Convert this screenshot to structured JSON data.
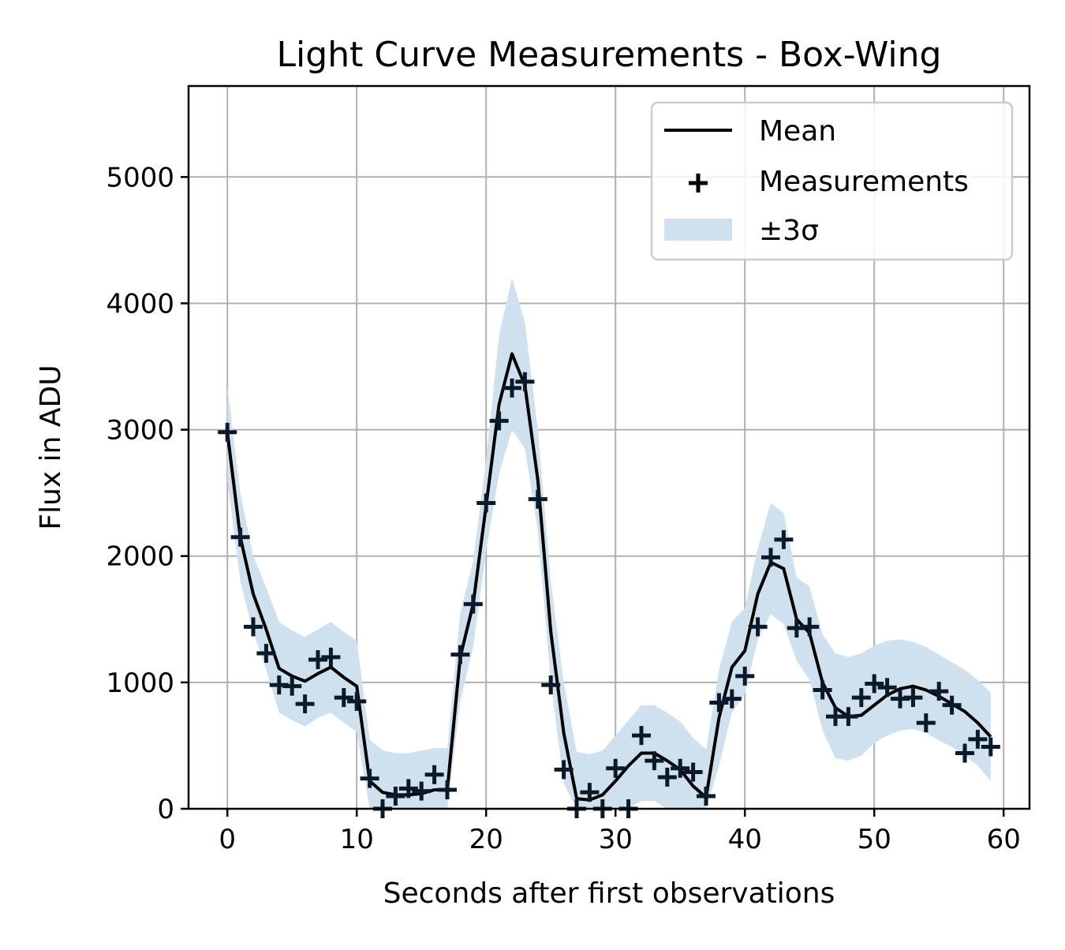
{
  "chart_data": {
    "type": "line",
    "title": "Light Curve Measurements - Box-Wing",
    "xlabel": "Seconds after first observations",
    "ylabel": "Flux in ADU",
    "xlim": [
      -3,
      62
    ],
    "ylim": [
      0,
      5720
    ],
    "x_ticks": [
      0,
      10,
      20,
      30,
      40,
      50,
      60
    ],
    "y_ticks": [
      0,
      1000,
      2000,
      3000,
      4000,
      5000
    ],
    "grid": true,
    "legend_position": "top-right",
    "legend": [
      {
        "key": "mean",
        "label": "Mean"
      },
      {
        "key": "measurements",
        "label": "Measurements"
      },
      {
        "key": "band",
        "label": "±3σ"
      }
    ],
    "colors": {
      "mean": "#000000",
      "measurement": "#0b1a2a",
      "band": "#cfe1ee",
      "grid": "#b0b0b0",
      "axes": "#000000"
    },
    "x": [
      0,
      1,
      2,
      3,
      4,
      5,
      6,
      7,
      8,
      9,
      10,
      11,
      12,
      13,
      14,
      15,
      16,
      17,
      18,
      19,
      20,
      21,
      22,
      23,
      24,
      25,
      26,
      27,
      28,
      29,
      30,
      31,
      32,
      33,
      34,
      35,
      36,
      37,
      38,
      39,
      40,
      41,
      42,
      43,
      44,
      45,
      46,
      47,
      48,
      49,
      50,
      51,
      52,
      53,
      54,
      55,
      56,
      57,
      58,
      59
    ],
    "series": [
      {
        "name": "Mean",
        "values": [
          2980,
          2150,
          1700,
          1420,
          1110,
          1050,
          1010,
          1070,
          1120,
          1040,
          970,
          220,
          130,
          110,
          110,
          120,
          150,
          150,
          1200,
          1620,
          2400,
          3200,
          3600,
          3350,
          2600,
          1400,
          600,
          80,
          70,
          110,
          220,
          340,
          440,
          440,
          380,
          310,
          180,
          90,
          720,
          1120,
          1250,
          1700,
          1950,
          1900,
          1500,
          1390,
          1000,
          800,
          730,
          740,
          820,
          900,
          950,
          970,
          940,
          890,
          830,
          770,
          680,
          570
        ]
      },
      {
        "name": "Measurements",
        "values": [
          2980,
          2150,
          1440,
          1230,
          980,
          970,
          830,
          1180,
          1200,
          880,
          850,
          240,
          0,
          100,
          160,
          140,
          270,
          150,
          1220,
          1620,
          2420,
          3070,
          3330,
          3380,
          2450,
          980,
          310,
          0,
          130,
          0,
          320,
          0,
          580,
          380,
          250,
          320,
          290,
          100,
          840,
          870,
          1050,
          1440,
          1990,
          2130,
          1430,
          1440,
          940,
          730,
          730,
          880,
          990,
          960,
          870,
          880,
          680,
          930,
          820,
          440,
          550,
          490
        ]
      }
    ],
    "band_upper": [
      3350,
      2500,
      2000,
      1750,
      1480,
      1410,
      1360,
      1420,
      1480,
      1400,
      1330,
      550,
      460,
      440,
      440,
      460,
      480,
      480,
      1550,
      1960,
      2760,
      3750,
      4200,
      3850,
      3000,
      1800,
      1000,
      450,
      430,
      460,
      580,
      700,
      820,
      820,
      760,
      690,
      560,
      470,
      1100,
      1480,
      1590,
      2060,
      2420,
      2340,
      1830,
      1760,
      1380,
      1230,
      1200,
      1230,
      1290,
      1330,
      1340,
      1320,
      1280,
      1220,
      1160,
      1100,
      1020,
      920
    ],
    "band_lower": [
      2600,
      1800,
      1400,
      1100,
      760,
      700,
      650,
      720,
      760,
      680,
      610,
      0,
      0,
      0,
      0,
      0,
      0,
      0,
      850,
      1280,
      2040,
      2650,
      3000,
      2850,
      2200,
      1000,
      200,
      0,
      0,
      0,
      0,
      0,
      60,
      60,
      0,
      0,
      0,
      0,
      340,
      760,
      910,
      1340,
      1540,
      1460,
      1170,
      1020,
      620,
      400,
      380,
      420,
      520,
      580,
      620,
      630,
      600,
      540,
      490,
      420,
      340,
      220
    ]
  }
}
